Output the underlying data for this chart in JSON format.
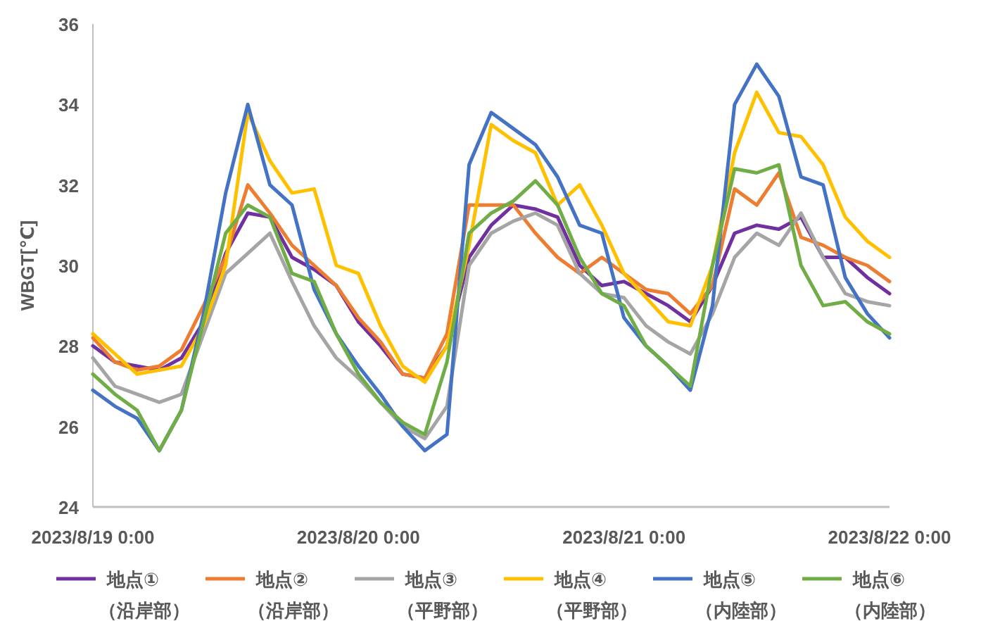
{
  "chart_data": {
    "type": "line",
    "ylabel": "WBGT[℃]",
    "x": [
      "2023-08-19T00:00",
      "2023-08-19T02:00",
      "2023-08-19T04:00",
      "2023-08-19T06:00",
      "2023-08-19T08:00",
      "2023-08-19T10:00",
      "2023-08-19T12:00",
      "2023-08-19T14:00",
      "2023-08-19T16:00",
      "2023-08-19T18:00",
      "2023-08-19T20:00",
      "2023-08-19T22:00",
      "2023-08-20T00:00",
      "2023-08-20T02:00",
      "2023-08-20T04:00",
      "2023-08-20T06:00",
      "2023-08-20T08:00",
      "2023-08-20T10:00",
      "2023-08-20T12:00",
      "2023-08-20T14:00",
      "2023-08-20T16:00",
      "2023-08-20T18:00",
      "2023-08-20T20:00",
      "2023-08-20T22:00",
      "2023-08-21T00:00",
      "2023-08-21T02:00",
      "2023-08-21T04:00",
      "2023-08-21T06:00",
      "2023-08-21T08:00",
      "2023-08-21T10:00",
      "2023-08-21T12:00",
      "2023-08-21T14:00",
      "2023-08-21T16:00",
      "2023-08-21T18:00",
      "2023-08-21T20:00",
      "2023-08-21T22:00",
      "2023-08-22T00:00"
    ],
    "series": [
      {
        "name": "地点①（沿岸部）",
        "color": "#7030a0",
        "values": [
          28.0,
          27.6,
          27.5,
          27.4,
          27.7,
          28.6,
          30.3,
          31.3,
          31.2,
          30.2,
          29.9,
          29.5,
          28.6,
          28.0,
          27.3,
          27.2,
          28.0,
          30.2,
          31.0,
          31.5,
          31.4,
          31.2,
          30.0,
          29.5,
          29.6,
          29.3,
          29.0,
          28.6,
          29.5,
          30.8,
          31.0,
          30.9,
          31.2,
          30.2,
          30.2,
          29.7,
          29.3
        ]
      },
      {
        "name": "地点②（沿岸部）",
        "color": "#ed7d31",
        "values": [
          28.2,
          27.6,
          27.4,
          27.5,
          27.9,
          29.0,
          30.2,
          32.0,
          31.3,
          30.5,
          30.0,
          29.5,
          28.7,
          28.1,
          27.3,
          27.2,
          28.3,
          31.5,
          31.5,
          31.5,
          30.8,
          30.2,
          29.8,
          30.2,
          29.8,
          29.4,
          29.3,
          28.8,
          29.5,
          31.9,
          31.5,
          32.3,
          30.7,
          30.5,
          30.2,
          30.0,
          29.6
        ]
      },
      {
        "name": "地点③（平野部）",
        "color": "#a5a5a5",
        "values": [
          27.7,
          27.0,
          26.8,
          26.6,
          26.8,
          28.3,
          29.8,
          30.3,
          30.8,
          29.6,
          28.5,
          27.7,
          27.2,
          26.6,
          26.0,
          25.7,
          26.5,
          30.0,
          30.8,
          31.1,
          31.3,
          31.0,
          29.8,
          29.3,
          29.2,
          28.5,
          28.1,
          27.8,
          28.8,
          30.2,
          30.8,
          30.5,
          31.3,
          30.2,
          29.3,
          29.1,
          29.0
        ]
      },
      {
        "name": "地点④（平野部）",
        "color": "#ffc000",
        "values": [
          28.3,
          27.8,
          27.3,
          27.4,
          27.5,
          28.5,
          30.0,
          33.8,
          32.6,
          31.8,
          31.9,
          30.0,
          29.8,
          28.5,
          27.5,
          27.1,
          28.0,
          30.5,
          33.5,
          33.1,
          32.8,
          31.5,
          32.0,
          31.0,
          29.8,
          29.2,
          28.6,
          28.5,
          30.0,
          32.8,
          34.3,
          33.3,
          33.2,
          32.5,
          31.2,
          30.6,
          30.2
        ]
      },
      {
        "name": "地点⑤（内陸部）",
        "color": "#4472c4",
        "values": [
          26.9,
          26.5,
          26.2,
          25.4,
          26.4,
          28.8,
          31.8,
          34.0,
          32.0,
          31.5,
          29.4,
          28.3,
          27.5,
          26.8,
          26.0,
          25.4,
          25.8,
          32.5,
          33.8,
          33.4,
          33.0,
          32.2,
          31.0,
          30.8,
          28.7,
          28.0,
          27.5,
          26.9,
          29.0,
          34.0,
          35.0,
          34.2,
          32.2,
          32.0,
          29.7,
          28.8,
          28.2
        ]
      },
      {
        "name": "地点⑥（内陸部）",
        "color": "#70ad47",
        "values": [
          27.3,
          26.8,
          26.4,
          25.4,
          26.4,
          28.6,
          30.8,
          31.5,
          31.2,
          29.8,
          29.6,
          28.3,
          27.3,
          26.6,
          26.1,
          25.8,
          27.6,
          30.8,
          31.3,
          31.6,
          32.1,
          31.5,
          30.2,
          29.3,
          29.0,
          28.0,
          27.5,
          27.0,
          30.0,
          32.4,
          32.3,
          32.5,
          30.0,
          29.0,
          29.1,
          28.6,
          28.3
        ]
      }
    ],
    "xlim": [
      "2023-08-19T00:00",
      "2023-08-22T00:00"
    ],
    "xticks": [
      {
        "value": "2023-08-19T00:00",
        "label": "2023/8/19 0:00"
      },
      {
        "value": "2023-08-20T00:00",
        "label": "2023/8/20 0:00"
      },
      {
        "value": "2023-08-21T00:00",
        "label": "2023/8/21 0:00"
      },
      {
        "value": "2023-08-22T00:00",
        "label": "2023/8/22 0:00"
      }
    ],
    "ylim": [
      24,
      36
    ],
    "yticks": [
      24,
      26,
      28,
      30,
      32,
      34,
      36
    ],
    "grid": false,
    "legend": "bottom",
    "marker": "none",
    "line_style": "solid"
  }
}
